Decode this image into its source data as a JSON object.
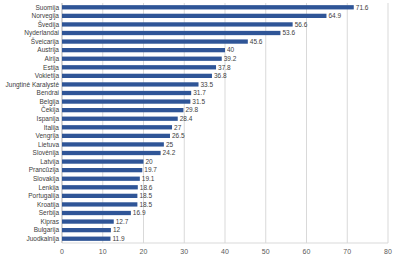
{
  "chart_data": {
    "type": "bar",
    "orientation": "horizontal",
    "categories": [
      "Suomija",
      "Norvegija",
      "Švedija",
      "Nyderlandai",
      "Šveicarija",
      "Austrija",
      "Airija",
      "Estija",
      "Vokietija",
      "Jungtinė Karalystė",
      "Bendrai",
      "Belgija",
      "Čekija",
      "Ispanija",
      "Italija",
      "Vengrija",
      "Lietuva",
      "Slovėnija",
      "Latvija",
      "Prancūzija",
      "Slovakija",
      "Lenkija",
      "Portugalija",
      "Kroatija",
      "Serbija",
      "Kipras",
      "Bulgarija",
      "Juodkalnija"
    ],
    "values": [
      71.6,
      64.9,
      56.6,
      53.6,
      45.6,
      40,
      39.2,
      37.8,
      36.8,
      33.5,
      31.7,
      31.5,
      29.8,
      28.4,
      27,
      26.5,
      25,
      24.2,
      20,
      19.7,
      19.1,
      18.6,
      18.5,
      18.5,
      16.9,
      12.7,
      12,
      11.9
    ],
    "color": "#2f5597",
    "xlim": [
      0,
      80
    ],
    "xticks": [
      0,
      10,
      20,
      30,
      40,
      50,
      60,
      70,
      80
    ],
    "grid": true,
    "data_labels": true
  }
}
